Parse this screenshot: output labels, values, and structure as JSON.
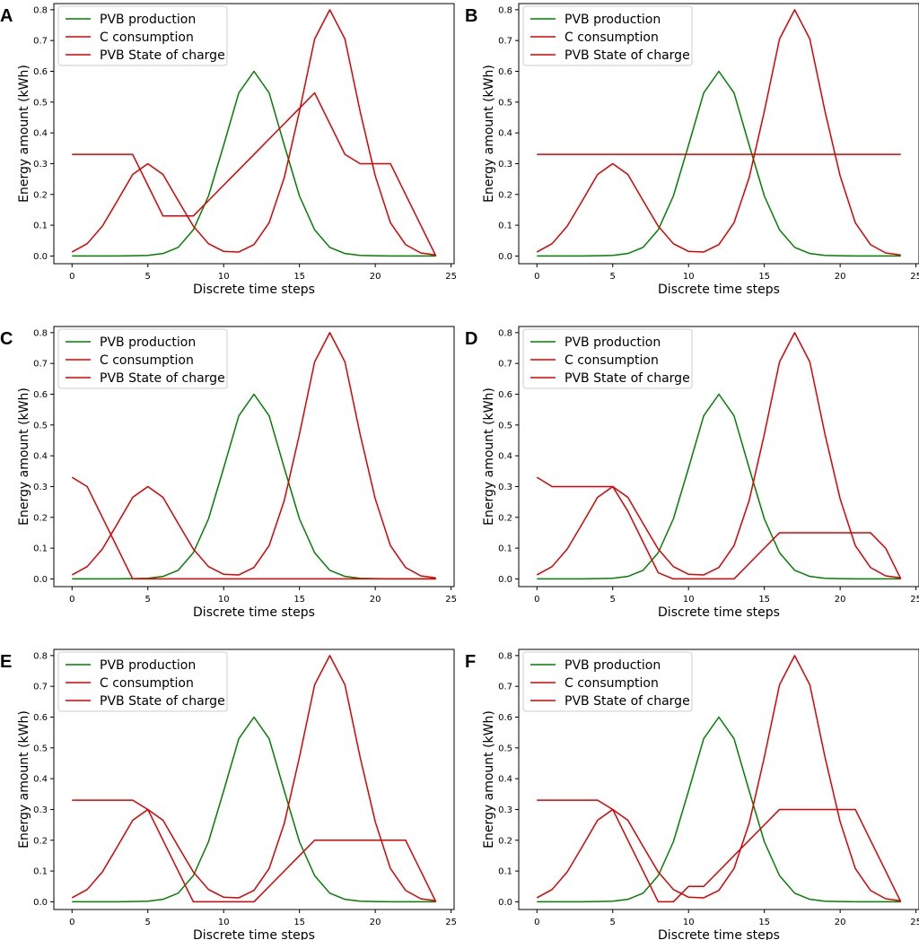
{
  "figure": {
    "shared_axes": {
      "xlabel": "Discrete time steps",
      "ylabel": "Energy amount (kWh)",
      "xlim": [
        -1.2,
        25.2
      ],
      "ylim": [
        -0.025,
        0.82
      ],
      "xticks": [
        0,
        5,
        10,
        15,
        20,
        25
      ],
      "yticks": [
        0.0,
        0.1,
        0.2,
        0.3,
        0.4,
        0.5,
        0.6,
        0.7,
        0.8
      ],
      "legend_position": "top-left",
      "series_colors": {
        "PVB production": "#008000",
        "C consumption": "#dd0000",
        "PVB State of charge": "#dd0000"
      }
    }
  },
  "chart_data": [
    {
      "panel_label": "A",
      "type": "line",
      "xlabel": "Discrete time steps",
      "ylabel": "Energy amount (kWh)",
      "xlim": [
        -1.2,
        25.2
      ],
      "ylim": [
        -0.025,
        0.82
      ],
      "x": [
        0,
        1,
        2,
        3,
        4,
        5,
        6,
        7,
        8,
        9,
        10,
        11,
        12,
        13,
        14,
        15,
        16,
        17,
        18,
        19,
        20,
        21,
        22,
        23,
        24
      ],
      "series": [
        {
          "name": "PVB production",
          "color": "#008000",
          "values": [
            0,
            0,
            0,
            0,
            0.001,
            0.002,
            0.008,
            0.028,
            0.085,
            0.195,
            0.36,
            0.53,
            0.6,
            0.53,
            0.36,
            0.195,
            0.085,
            0.028,
            0.008,
            0.002,
            0.001,
            0,
            0,
            0,
            0
          ]
        },
        {
          "name": "C consumption",
          "color": "#dd0000",
          "values": [
            0.013,
            0.04,
            0.097,
            0.18,
            0.265,
            0.3,
            0.265,
            0.18,
            0.097,
            0.04,
            0.015,
            0.013,
            0.037,
            0.108,
            0.255,
            0.47,
            0.705,
            0.8,
            0.705,
            0.47,
            0.26,
            0.108,
            0.037,
            0.01,
            0.003
          ]
        },
        {
          "name": "PVB State of charge",
          "color": "#dd0000",
          "values": [
            0.33,
            0.33,
            0.33,
            0.33,
            0.33,
            0.23,
            0.13,
            0.13,
            0.13,
            0.18,
            0.23,
            0.28,
            0.33,
            0.38,
            0.43,
            0.48,
            0.53,
            0.43,
            0.33,
            0.3,
            0.3,
            0.3,
            0.2,
            0.1,
            0.0
          ]
        }
      ]
    },
    {
      "panel_label": "B",
      "type": "line",
      "xlabel": "Discrete time steps",
      "ylabel": "Energy amount (kWh)",
      "xlim": [
        -1.2,
        25.2
      ],
      "ylim": [
        -0.025,
        0.82
      ],
      "x": [
        0,
        1,
        2,
        3,
        4,
        5,
        6,
        7,
        8,
        9,
        10,
        11,
        12,
        13,
        14,
        15,
        16,
        17,
        18,
        19,
        20,
        21,
        22,
        23,
        24
      ],
      "series": [
        {
          "name": "PVB production",
          "color": "#008000",
          "values": [
            0,
            0,
            0,
            0,
            0.001,
            0.002,
            0.008,
            0.028,
            0.085,
            0.195,
            0.36,
            0.53,
            0.6,
            0.53,
            0.36,
            0.195,
            0.085,
            0.028,
            0.008,
            0.002,
            0.001,
            0,
            0,
            0,
            0
          ]
        },
        {
          "name": "C consumption",
          "color": "#dd0000",
          "values": [
            0.013,
            0.04,
            0.097,
            0.18,
            0.265,
            0.3,
            0.265,
            0.18,
            0.097,
            0.04,
            0.015,
            0.013,
            0.037,
            0.108,
            0.255,
            0.47,
            0.705,
            0.8,
            0.705,
            0.47,
            0.26,
            0.108,
            0.037,
            0.01,
            0.003
          ]
        },
        {
          "name": "PVB State of charge",
          "color": "#dd0000",
          "values": [
            0.33,
            0.33,
            0.33,
            0.33,
            0.33,
            0.33,
            0.33,
            0.33,
            0.33,
            0.33,
            0.33,
            0.33,
            0.33,
            0.33,
            0.33,
            0.33,
            0.33,
            0.33,
            0.33,
            0.33,
            0.33,
            0.33,
            0.33,
            0.33,
            0.33
          ]
        }
      ]
    },
    {
      "panel_label": "C",
      "type": "line",
      "xlabel": "Discrete time steps",
      "ylabel": "Energy amount (kWh)",
      "xlim": [
        -1.2,
        25.2
      ],
      "ylim": [
        -0.025,
        0.82
      ],
      "x": [
        0,
        1,
        2,
        3,
        4,
        5,
        6,
        7,
        8,
        9,
        10,
        11,
        12,
        13,
        14,
        15,
        16,
        17,
        18,
        19,
        20,
        21,
        22,
        23,
        24
      ],
      "series": [
        {
          "name": "PVB production",
          "color": "#008000",
          "values": [
            0,
            0,
            0,
            0,
            0.001,
            0.002,
            0.008,
            0.028,
            0.085,
            0.195,
            0.36,
            0.53,
            0.6,
            0.53,
            0.36,
            0.195,
            0.085,
            0.028,
            0.008,
            0.002,
            0.001,
            0,
            0,
            0,
            0
          ]
        },
        {
          "name": "C consumption",
          "color": "#dd0000",
          "values": [
            0.013,
            0.04,
            0.097,
            0.18,
            0.265,
            0.3,
            0.265,
            0.18,
            0.097,
            0.04,
            0.015,
            0.013,
            0.037,
            0.108,
            0.255,
            0.47,
            0.705,
            0.8,
            0.705,
            0.47,
            0.26,
            0.108,
            0.037,
            0.01,
            0.003
          ]
        },
        {
          "name": "PVB State of charge",
          "color": "#dd0000",
          "values": [
            0.33,
            0.3,
            0.2,
            0.1,
            0,
            0,
            0,
            0,
            0,
            0,
            0,
            0,
            0,
            0,
            0,
            0,
            0,
            0,
            0,
            0,
            0,
            0,
            0,
            0,
            0
          ]
        }
      ]
    },
    {
      "panel_label": "D",
      "type": "line",
      "xlabel": "Discrete time steps",
      "ylabel": "Energy amount (kWh)",
      "xlim": [
        -1.2,
        25.2
      ],
      "ylim": [
        -0.025,
        0.82
      ],
      "x": [
        0,
        1,
        2,
        3,
        4,
        5,
        6,
        7,
        8,
        9,
        10,
        11,
        12,
        13,
        14,
        15,
        16,
        17,
        18,
        19,
        20,
        21,
        22,
        23,
        24
      ],
      "series": [
        {
          "name": "PVB production",
          "color": "#008000",
          "values": [
            0,
            0,
            0,
            0,
            0.001,
            0.002,
            0.008,
            0.028,
            0.085,
            0.195,
            0.36,
            0.53,
            0.6,
            0.53,
            0.36,
            0.195,
            0.085,
            0.028,
            0.008,
            0.002,
            0.001,
            0,
            0,
            0,
            0
          ]
        },
        {
          "name": "C consumption",
          "color": "#dd0000",
          "values": [
            0.013,
            0.04,
            0.097,
            0.18,
            0.265,
            0.3,
            0.265,
            0.18,
            0.097,
            0.04,
            0.015,
            0.013,
            0.037,
            0.108,
            0.255,
            0.47,
            0.705,
            0.8,
            0.705,
            0.47,
            0.26,
            0.108,
            0.037,
            0.01,
            0.003
          ]
        },
        {
          "name": "PVB State of charge",
          "color": "#dd0000",
          "values": [
            0.33,
            0.3,
            0.3,
            0.3,
            0.3,
            0.3,
            0.22,
            0.12,
            0.02,
            0,
            0,
            0,
            0,
            0,
            0.05,
            0.1,
            0.15,
            0.15,
            0.15,
            0.15,
            0.15,
            0.15,
            0.15,
            0.1,
            0.0
          ]
        }
      ]
    },
    {
      "panel_label": "E",
      "type": "line",
      "xlabel": "Discrete time steps",
      "ylabel": "Energy amount (kWh)",
      "xlim": [
        -1.2,
        25.2
      ],
      "ylim": [
        -0.025,
        0.82
      ],
      "x": [
        0,
        1,
        2,
        3,
        4,
        5,
        6,
        7,
        8,
        9,
        10,
        11,
        12,
        13,
        14,
        15,
        16,
        17,
        18,
        19,
        20,
        21,
        22,
        23,
        24
      ],
      "series": [
        {
          "name": "PVB production",
          "color": "#008000",
          "values": [
            0,
            0,
            0,
            0,
            0.001,
            0.002,
            0.008,
            0.028,
            0.085,
            0.195,
            0.36,
            0.53,
            0.6,
            0.53,
            0.36,
            0.195,
            0.085,
            0.028,
            0.008,
            0.002,
            0.001,
            0,
            0,
            0,
            0
          ]
        },
        {
          "name": "C consumption",
          "color": "#dd0000",
          "values": [
            0.013,
            0.04,
            0.097,
            0.18,
            0.265,
            0.3,
            0.265,
            0.18,
            0.097,
            0.04,
            0.015,
            0.013,
            0.037,
            0.108,
            0.255,
            0.47,
            0.705,
            0.8,
            0.705,
            0.47,
            0.26,
            0.108,
            0.037,
            0.01,
            0.003
          ]
        },
        {
          "name": "PVB State of charge",
          "color": "#dd0000",
          "values": [
            0.33,
            0.33,
            0.33,
            0.33,
            0.33,
            0.3,
            0.2,
            0.1,
            0,
            0,
            0,
            0,
            0,
            0.05,
            0.1,
            0.15,
            0.2,
            0.2,
            0.2,
            0.2,
            0.2,
            0.2,
            0.2,
            0.1,
            0.0
          ]
        }
      ]
    },
    {
      "panel_label": "F",
      "type": "line",
      "xlabel": "Discrete time steps",
      "ylabel": "Energy amount (kWh)",
      "xlim": [
        -1.2,
        25.2
      ],
      "ylim": [
        -0.025,
        0.82
      ],
      "x": [
        0,
        1,
        2,
        3,
        4,
        5,
        6,
        7,
        8,
        9,
        10,
        11,
        12,
        13,
        14,
        15,
        16,
        17,
        18,
        19,
        20,
        21,
        22,
        23,
        24
      ],
      "series": [
        {
          "name": "PVB production",
          "color": "#008000",
          "values": [
            0,
            0,
            0,
            0,
            0.001,
            0.002,
            0.008,
            0.028,
            0.085,
            0.195,
            0.36,
            0.53,
            0.6,
            0.53,
            0.36,
            0.195,
            0.085,
            0.028,
            0.008,
            0.002,
            0.001,
            0,
            0,
            0,
            0
          ]
        },
        {
          "name": "C consumption",
          "color": "#dd0000",
          "values": [
            0.013,
            0.04,
            0.097,
            0.18,
            0.265,
            0.3,
            0.265,
            0.18,
            0.097,
            0.04,
            0.015,
            0.013,
            0.037,
            0.108,
            0.255,
            0.47,
            0.705,
            0.8,
            0.705,
            0.47,
            0.26,
            0.108,
            0.037,
            0.01,
            0.003
          ]
        },
        {
          "name": "PVB State of charge",
          "color": "#dd0000",
          "values": [
            0.33,
            0.33,
            0.33,
            0.33,
            0.33,
            0.3,
            0.2,
            0.1,
            0,
            0,
            0.05,
            0.05,
            0.1,
            0.15,
            0.2,
            0.25,
            0.3,
            0.3,
            0.3,
            0.3,
            0.3,
            0.3,
            0.2,
            0.1,
            0.0
          ]
        }
      ]
    }
  ]
}
